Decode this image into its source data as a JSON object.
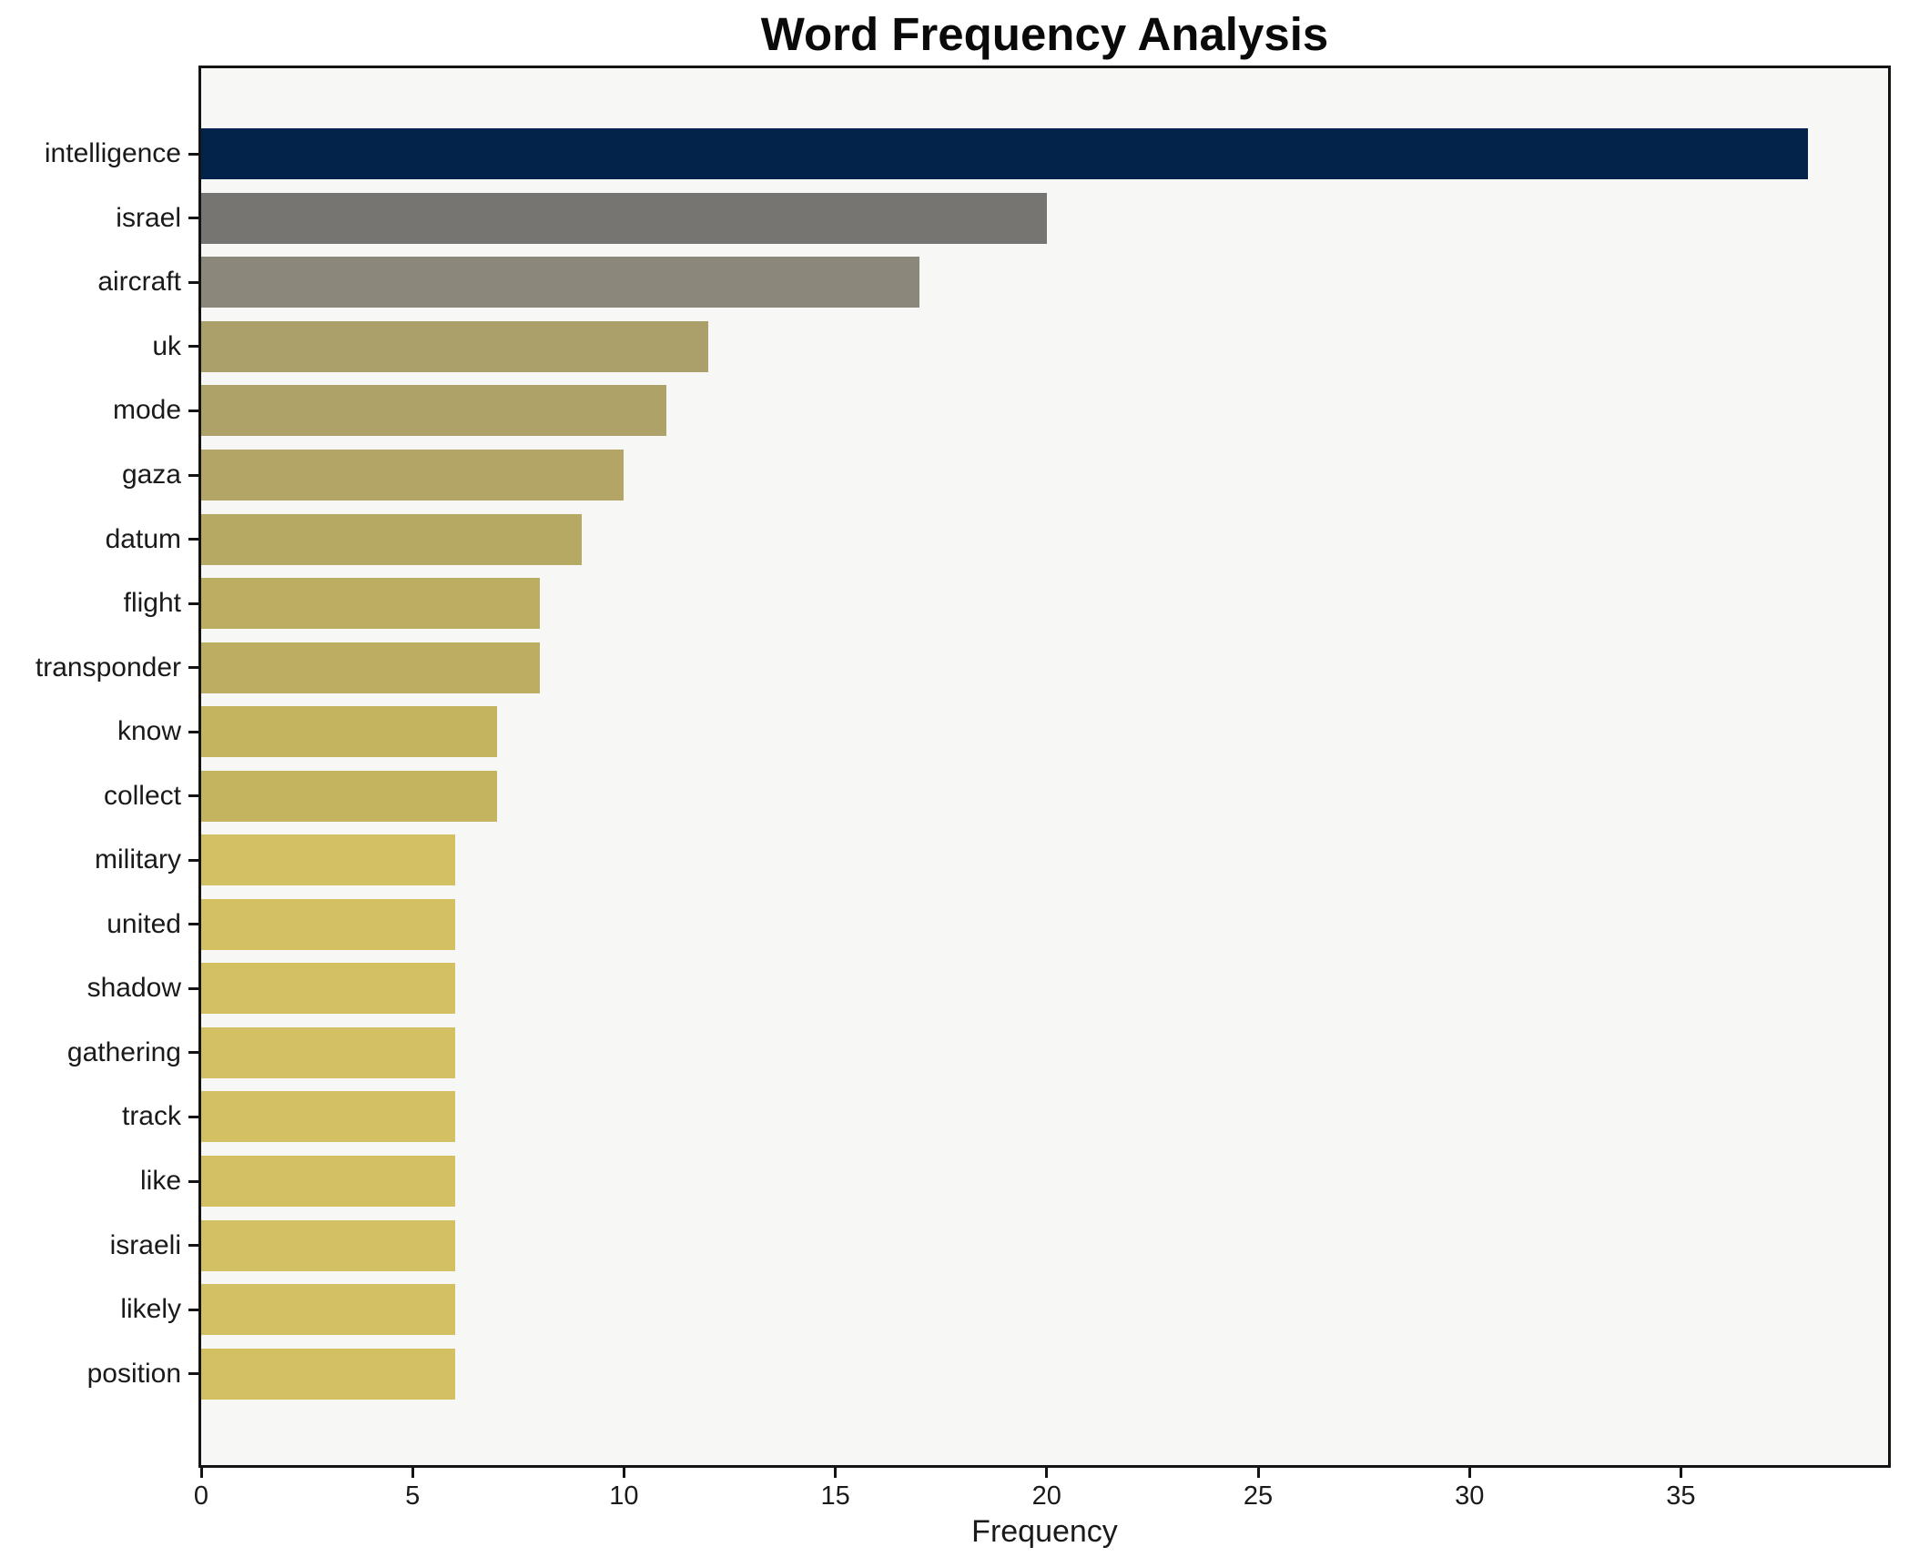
{
  "title": "Word Frequency Analysis",
  "xlabel": "Frequency",
  "chart_data": {
    "type": "bar",
    "orientation": "horizontal",
    "title": "Word Frequency Analysis",
    "xlabel": "Frequency",
    "ylabel": "",
    "xlim": [
      0,
      39.9
    ],
    "x_ticks": [
      0,
      5,
      10,
      15,
      20,
      25,
      30,
      35
    ],
    "grid": false,
    "legend": false,
    "plot_background": "#f7f7f5",
    "spine_color": "#141414",
    "categories": [
      "intelligence",
      "israel",
      "aircraft",
      "uk",
      "mode",
      "gaza",
      "datum",
      "flight",
      "transponder",
      "know",
      "collect",
      "military",
      "united",
      "shadow",
      "gathering",
      "track",
      "like",
      "israeli",
      "likely",
      "position"
    ],
    "values": [
      38,
      20,
      17,
      12,
      11,
      10,
      9,
      8,
      8,
      7,
      7,
      6,
      6,
      6,
      6,
      6,
      6,
      6,
      6,
      6
    ],
    "bars": [
      {
        "label": "intelligence",
        "value": 38,
        "color": "#04234b"
      },
      {
        "label": "israel",
        "value": 20,
        "color": "#767571"
      },
      {
        "label": "aircraft",
        "value": 17,
        "color": "#8c877b"
      },
      {
        "label": "uk",
        "value": 12,
        "color": "#aba06a"
      },
      {
        "label": "mode",
        "value": 11,
        "color": "#aea268"
      },
      {
        "label": "gaza",
        "value": 10,
        "color": "#b2a566"
      },
      {
        "label": "datum",
        "value": 9,
        "color": "#b6a963"
      },
      {
        "label": "flight",
        "value": 8,
        "color": "#bcae61"
      },
      {
        "label": "transponder",
        "value": 8,
        "color": "#bcae61"
      },
      {
        "label": "know",
        "value": 7,
        "color": "#c5b45f"
      },
      {
        "label": "collect",
        "value": 7,
        "color": "#c5b45f"
      },
      {
        "label": "military",
        "value": 6,
        "color": "#d2c063"
      },
      {
        "label": "united",
        "value": 6,
        "color": "#d2c063"
      },
      {
        "label": "shadow",
        "value": 6,
        "color": "#d2c063"
      },
      {
        "label": "gathering",
        "value": 6,
        "color": "#d2c063"
      },
      {
        "label": "track",
        "value": 6,
        "color": "#d2c063"
      },
      {
        "label": "like",
        "value": 6,
        "color": "#d2c063"
      },
      {
        "label": "israeli",
        "value": 6,
        "color": "#d2c063"
      },
      {
        "label": "likely",
        "value": 6,
        "color": "#d2c063"
      },
      {
        "label": "position",
        "value": 6,
        "color": "#d2c063"
      }
    ]
  }
}
